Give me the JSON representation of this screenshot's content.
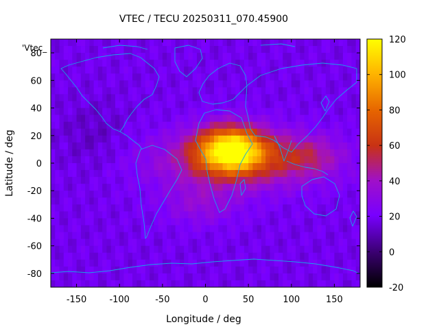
{
  "chart_data": {
    "type": "heatmap",
    "title": "VTEC / TECU 20250311_070.45900",
    "xlabel": "Longitude / deg",
    "ylabel": "Latitude / deg",
    "xlim": [
      -180,
      180
    ],
    "ylim": [
      -90,
      90
    ],
    "xticks": [
      -150,
      -100,
      -50,
      0,
      50,
      100,
      150
    ],
    "yticks": [
      -80,
      -60,
      -40,
      -20,
      0,
      20,
      40,
      60,
      80
    ],
    "legend_label": "'Vtec_",
    "colorbar": {
      "range": [
        -20,
        120
      ],
      "ticks": [
        -20,
        0,
        20,
        40,
        60,
        80,
        100,
        120
      ],
      "colormap": [
        "#000000",
        "#3a0070",
        "#7800ff",
        "#a010c8",
        "#c83214",
        "#e66400",
        "#ffb400",
        "#ffff00"
      ]
    },
    "field_description": "Vertical total electron content, max ~115 TECU over Africa/Arabia (lon 0-60, lat 0-25), equatorial band of 50-70 TECU extending from South America to the west Pacific, background ~15-25 TECU at high latitudes and night side.",
    "coastline_color": "#1aa3e8"
  }
}
